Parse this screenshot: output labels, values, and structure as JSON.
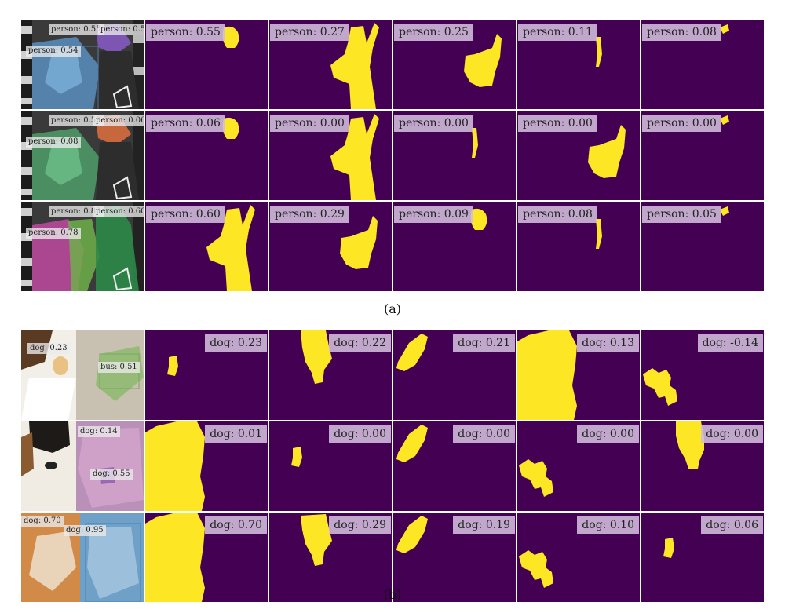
{
  "colors": {
    "background": "#440154",
    "mask": "#fde725",
    "tag": "#d2bedc"
  },
  "panel_a": {
    "caption": "(a)",
    "rows": [
      {
        "photo_labels": [
          "person: 0.55",
          "person: 0.55",
          "person: 0.54"
        ],
        "masks": [
          {
            "label": "person: 0.55",
            "shape": "head-small"
          },
          {
            "label": "person: 0.27",
            "shape": "person-waving"
          },
          {
            "label": "person: 0.25",
            "shape": "person-bent"
          },
          {
            "label": "person: 0.11",
            "shape": "thin-arm"
          },
          {
            "label": "person: 0.08",
            "shape": "tiny-hand"
          }
        ]
      },
      {
        "photo_labels": [
          "person: 0.59",
          "person: 0.06",
          "person: 0.08"
        ],
        "masks": [
          {
            "label": "person: 0.06",
            "shape": "head-small"
          },
          {
            "label": "person: 0.00",
            "shape": "person-waving"
          },
          {
            "label": "person: 0.00",
            "shape": "thin-arm"
          },
          {
            "label": "person: 0.00",
            "shape": "person-bent"
          },
          {
            "label": "person: 0.00",
            "shape": "tiny-hand"
          }
        ]
      },
      {
        "photo_labels": [
          "person: 0.83",
          "person: 0.60",
          "person: 0.78"
        ],
        "masks": [
          {
            "label": "person: 0.60",
            "shape": "person-waving"
          },
          {
            "label": "person: 0.29",
            "shape": "person-bent"
          },
          {
            "label": "person: 0.09",
            "shape": "head-small"
          },
          {
            "label": "person: 0.08",
            "shape": "thin-arm"
          },
          {
            "label": "person: 0.05",
            "shape": "tiny-hand"
          }
        ]
      }
    ]
  },
  "panel_b": {
    "caption": "(b)",
    "rows": [
      {
        "photo_labels": [
          "dog: 0.23",
          "bus: 0.51"
        ],
        "masks": [
          {
            "label": "dog: 0.23",
            "shape": "small-blob"
          },
          {
            "label": "dog: 0.22",
            "shape": "dog-head"
          },
          {
            "label": "dog: 0.21",
            "shape": "leaf"
          },
          {
            "label": "dog: 0.13",
            "shape": "big-dog"
          },
          {
            "label": "dog: -0.14",
            "shape": "fragment"
          }
        ]
      },
      {
        "photo_labels": [
          "dog: 0.14",
          "dog: 0.55"
        ],
        "masks": [
          {
            "label": "dog: 0.01",
            "shape": "big-dog"
          },
          {
            "label": "dog: 0.00",
            "shape": "small-blob"
          },
          {
            "label": "dog: 0.00",
            "shape": "leaf"
          },
          {
            "label": "dog: 0.00",
            "shape": "fragment"
          },
          {
            "label": "dog: 0.00",
            "shape": "dog-head-right"
          }
        ]
      },
      {
        "photo_labels": [
          "dog: 0.70",
          "dog: 0.95"
        ],
        "masks": [
          {
            "label": "dog: 0.70",
            "shape": "big-dog"
          },
          {
            "label": "dog: 0.29",
            "shape": "dog-head"
          },
          {
            "label": "dog: 0.19",
            "shape": "leaf"
          },
          {
            "label": "dog: 0.10",
            "shape": "fragment"
          },
          {
            "label": "dog: 0.06",
            "shape": "small-blob"
          }
        ]
      }
    ]
  }
}
